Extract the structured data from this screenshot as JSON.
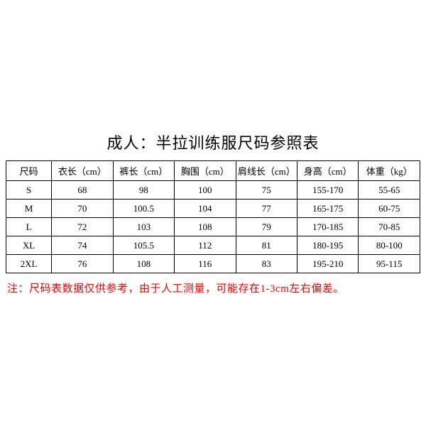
{
  "title": "成人：半拉训练服尺码参照表",
  "table": {
    "type": "table",
    "background_color": "#ffffff",
    "border_color": "#000000",
    "text_color": "#000000",
    "header_fontsize": 13,
    "cell_fontsize": 13,
    "columns": [
      "尺码",
      "衣长（cm）",
      "裤长（cm）",
      "胸围（cm）",
      "肩线长（cm）",
      "身高（cm）",
      "体重（kg）"
    ],
    "rows": [
      [
        "S",
        "68",
        "98",
        "100",
        "75",
        "155-170",
        "55-65"
      ],
      [
        "M",
        "70",
        "100.5",
        "104",
        "77",
        "165-175",
        "60-75"
      ],
      [
        "L",
        "72",
        "103",
        "108",
        "79",
        "170-185",
        "70-85"
      ],
      [
        "XL",
        "74",
        "105.5",
        "112",
        "81",
        "180-195",
        "80-100"
      ],
      [
        "2XL",
        "76",
        "108",
        "116",
        "83",
        "195-210",
        "95-115"
      ]
    ]
  },
  "note": {
    "text": "注：尺码表数据仅供参考，由于人工测量，可能存在1-3cm左右偏差。",
    "color": "#ff0000",
    "fontsize": 15
  },
  "title_style": {
    "fontsize": 22,
    "color": "#000000"
  }
}
